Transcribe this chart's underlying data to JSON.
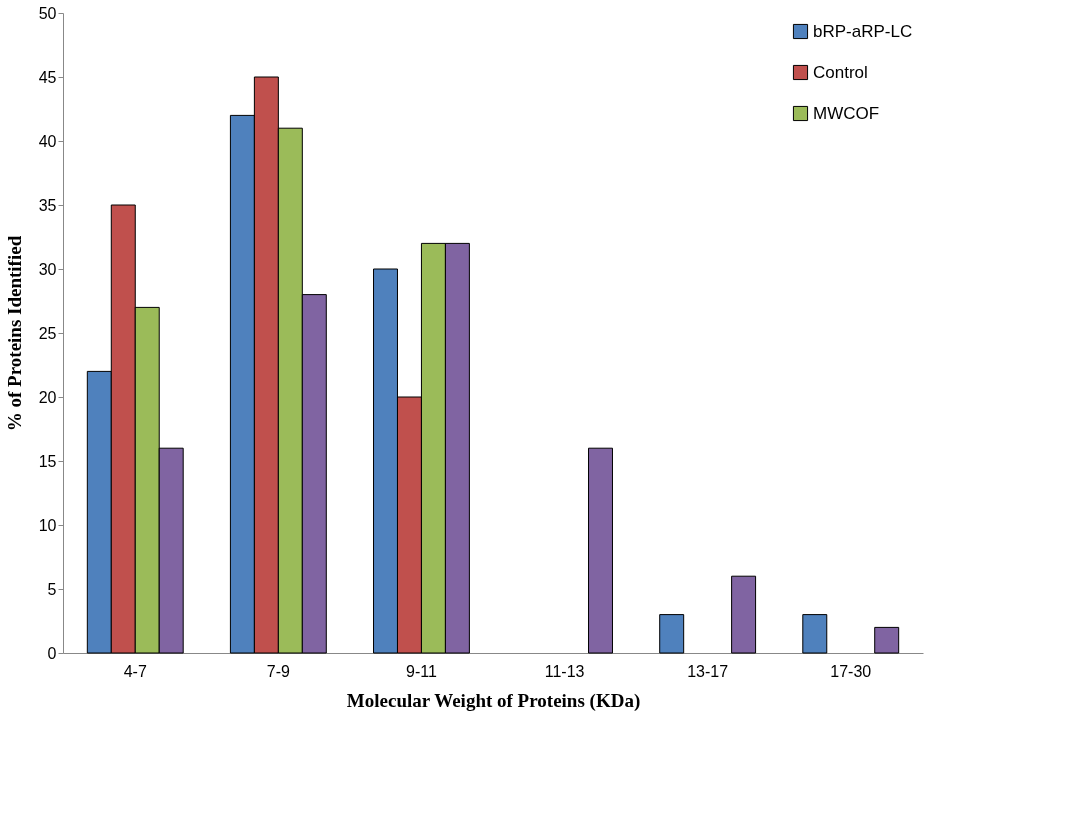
{
  "chart_data": {
    "type": "bar",
    "xlabel": "Molecular Weight of Proteins (KDa)",
    "ylabel": "% of Proteins Identified",
    "categories": [
      "4-7",
      "7-9",
      "9-11",
      "11-13",
      "13-17",
      "17-30"
    ],
    "series": [
      {
        "name": "bRP-aRP-LC",
        "color": "#4f81bd",
        "values": [
          22,
          42,
          30,
          null,
          3,
          3
        ]
      },
      {
        "name": "Control",
        "color": "#c0504d",
        "values": [
          35,
          45,
          20,
          null,
          null,
          null
        ]
      },
      {
        "name": "MWCOF",
        "color": "#9bbb59",
        "values": [
          27,
          41,
          32,
          null,
          null,
          null
        ]
      },
      {
        "color": "#8064a2",
        "values": [
          16,
          28,
          32,
          16,
          6,
          2
        ]
      }
    ],
    "ylim": [
      0,
      50
    ],
    "yticks": [
      0,
      5,
      10,
      15,
      20,
      25,
      30,
      35,
      40,
      45,
      50
    ],
    "grid": false,
    "legend": "top right"
  }
}
